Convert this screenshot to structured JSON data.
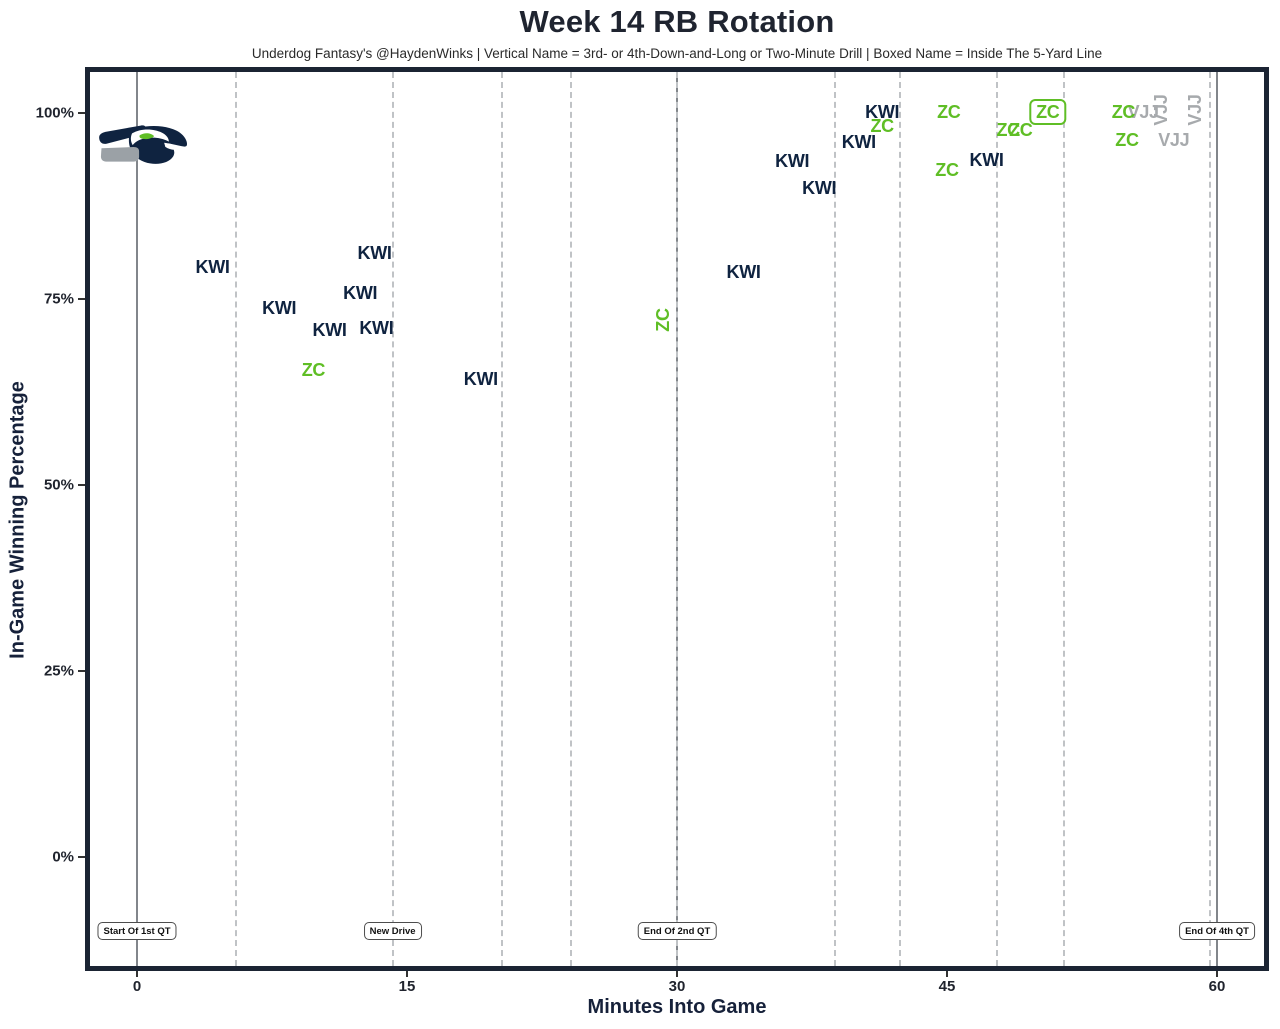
{
  "chart": {
    "title": "Week 14 RB Rotation",
    "subtitle": "Underdog Fantasy's @HaydenWinks | Vertical Name = 3rd- or 4th-Down-and-Long or Two-Minute Drill | Boxed Name = Inside The 5-Yard Line",
    "xlabel": "Minutes Into Game",
    "ylabel": "In-Game Winning Percentage"
  },
  "icons": {
    "team_logo": "seattle-seahawks-logo"
  },
  "colors": {
    "navy": "#0F2340",
    "green": "#5FBE25",
    "gray": "#A7AAAD",
    "panel_border": "#1B2433",
    "gridline_dashed": "#C0C3C6",
    "gridline_solid": "#82868B"
  },
  "chart_data": {
    "type": "scatter",
    "title": "Week 14 RB Rotation",
    "subtitle": "Underdog Fantasy's @HaydenWinks | Vertical Name = 3rd- or 4th-Down-and-Long or Two-Minute Drill | Boxed Name = Inside The 5-Yard Line",
    "xlabel": "Minutes Into Game",
    "ylabel": "In-Game Winning Percentage",
    "x_axis": {
      "tick_values": [
        0,
        15,
        30,
        45,
        60
      ],
      "tick_labels": [
        "0",
        "15",
        "30",
        "45",
        "60"
      ],
      "range": [
        -3,
        63
      ]
    },
    "y_axis": {
      "tick_values": [
        0,
        25,
        50,
        75,
        100
      ],
      "tick_labels": [
        "0%",
        "25%",
        "50%",
        "75%",
        "100%"
      ],
      "range": [
        -15,
        106
      ]
    },
    "grid": {
      "vertical_only": true,
      "drive_lines_minutes": [
        5.5,
        14.2,
        20.3,
        24.1,
        30,
        38.8,
        42.4,
        47.8,
        51.5,
        59.6
      ],
      "quarter_lines_minutes": [
        0,
        30,
        60
      ]
    },
    "players": [
      {
        "code": "KWI",
        "color_key": "navy"
      },
      {
        "code": "ZC",
        "color_key": "green"
      },
      {
        "code": "VJJ",
        "color_key": "gray"
      }
    ],
    "legend_notes": {
      "vertical_name": "3rd- or 4th-Down-and-Long or Two-Minute Drill",
      "boxed_name": "Inside The 5-Yard Line"
    },
    "points": [
      {
        "player": "KWI",
        "minute": 4.2,
        "win_pct": 79.3
      },
      {
        "player": "KWI",
        "minute": 7.9,
        "win_pct": 73.8
      },
      {
        "player": "ZC",
        "minute": 9.8,
        "win_pct": 65.5
      },
      {
        "player": "KWI",
        "minute": 10.7,
        "win_pct": 70.8
      },
      {
        "player": "KWI",
        "minute": 12.4,
        "win_pct": 75.8
      },
      {
        "player": "KWI",
        "minute": 13.2,
        "win_pct": 81.2
      },
      {
        "player": "KWI",
        "minute": 13.3,
        "win_pct": 71.1
      },
      {
        "player": "KWI",
        "minute": 19.1,
        "win_pct": 64.2
      },
      {
        "player": "ZC",
        "minute": 29.2,
        "win_pct": 72.2,
        "style": "vertical"
      },
      {
        "player": "KWI",
        "minute": 33.7,
        "win_pct": 78.6
      },
      {
        "player": "KWI",
        "minute": 36.4,
        "win_pct": 93.5
      },
      {
        "player": "KWI",
        "minute": 37.9,
        "win_pct": 89.9
      },
      {
        "player": "KWI",
        "minute": 40.1,
        "win_pct": 96.1
      },
      {
        "player": "KWI",
        "minute": 41.4,
        "win_pct": 100.1
      },
      {
        "player": "ZC",
        "minute": 41.4,
        "win_pct": 98.2
      },
      {
        "player": "ZC",
        "minute": 45.1,
        "win_pct": 100.1
      },
      {
        "player": "ZC",
        "minute": 45.0,
        "win_pct": 92.3
      },
      {
        "player": "KWI",
        "minute": 47.2,
        "win_pct": 93.7
      },
      {
        "player": "ZC",
        "minute": 48.4,
        "win_pct": 97.7
      },
      {
        "player": "ZC",
        "minute": 49.1,
        "win_pct": 97.7
      },
      {
        "player": "ZC",
        "minute": 50.6,
        "win_pct": 100.2,
        "style": "boxed"
      },
      {
        "player": "VJJ",
        "minute": 55.9,
        "win_pct": 100.1
      },
      {
        "player": "VJJ",
        "minute": 56.9,
        "win_pct": 100.4,
        "style": "vertical"
      },
      {
        "player": "VJJ",
        "minute": 58.8,
        "win_pct": 100.4,
        "style": "vertical"
      },
      {
        "player": "ZC",
        "minute": 54.8,
        "win_pct": 100.1
      },
      {
        "player": "ZC",
        "minute": 55.0,
        "win_pct": 96.4
      },
      {
        "player": "VJJ",
        "minute": 57.6,
        "win_pct": 96.4
      }
    ],
    "annotations": [
      {
        "label": "Start Of 1st QT",
        "minute": 0,
        "win_pct": -10
      },
      {
        "label": "New Drive",
        "minute": 14.2,
        "win_pct": -10
      },
      {
        "label": "End Of 2nd QT",
        "minute": 30,
        "win_pct": -10
      },
      {
        "label": "End Of 4th QT",
        "minute": 60,
        "win_pct": -10
      }
    ]
  }
}
